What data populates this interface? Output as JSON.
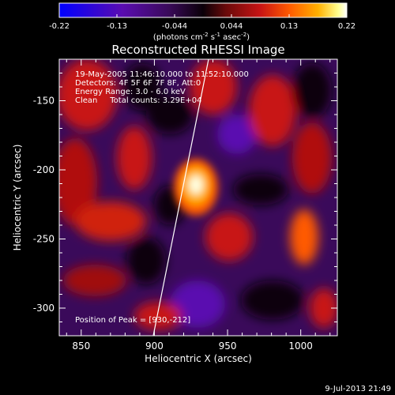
{
  "colorbar": {
    "ticks": [
      "-0.22",
      "-0.13",
      "-0.044",
      "0.044",
      "0.13",
      "0.22"
    ],
    "unit_main": "(photons cm",
    "unit_exp1": "-2",
    "unit_mid": " s",
    "unit_exp2": "-1",
    "unit_mid2": " asec",
    "unit_exp3": "-2",
    "unit_end": ")",
    "colors": [
      "#0000ff",
      "#5a0cb0",
      "#3a0a5a",
      "#0a0008",
      "#6a0a0a",
      "#c81414",
      "#ff5a00",
      "#ffb000",
      "#ffff90",
      "#ffffff"
    ]
  },
  "chart_data": {
    "type": "heatmap",
    "title": "Reconstructed RHESSI Image",
    "xlabel": "Heliocentric X (arcsec)",
    "ylabel": "Heliocentric Y (arcsec)",
    "xlim": [
      835,
      1025
    ],
    "ylim": [
      -320,
      -120
    ],
    "xticks": [
      850,
      900,
      950,
      1000
    ],
    "yticks": [
      -150,
      -200,
      -250,
      -300
    ],
    "value_range": [
      -0.22,
      0.22
    ],
    "peak": {
      "x": 930,
      "y": -212
    },
    "annotations": {
      "line1": "19-May-2005 11:46:10.000 to 11:52:10.000",
      "line2": "Detectors: 4F 5F 6F 7F 8F, Att:0",
      "line3": "Energy Range: 3.0 - 6.0 keV",
      "line4": "Clean     Total counts: 3.29E+04",
      "peak_text": "Position of Peak = [930,-212]"
    }
  },
  "footer": {
    "timestamp": "9-Jul-2013 21:49"
  }
}
